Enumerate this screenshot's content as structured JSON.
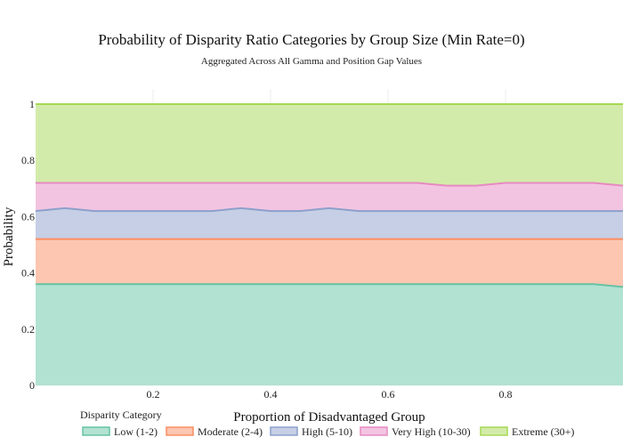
{
  "chart_data": {
    "type": "area",
    "stacked": true,
    "title": "Probability of Disparity Ratio Categories by Group Size (Min Rate=0)",
    "subtitle": "Aggregated Across All Gamma and Position Gap Values",
    "xlabel": "Proportion of Disadvantaged Group",
    "ylabel": "Probability",
    "xlim": [
      0,
      1
    ],
    "ylim": [
      0,
      1
    ],
    "x_ticks": [
      0.2,
      0.4,
      0.6,
      0.8
    ],
    "x_tick_labels": [
      "0.2",
      "0.4",
      "0.6",
      "0.8"
    ],
    "y_ticks": [
      0,
      0.2,
      0.4,
      0.6,
      0.8,
      1
    ],
    "y_tick_labels": [
      "0",
      "0.2",
      "0.4",
      "0.6",
      "0.8",
      "1"
    ],
    "grid": true,
    "legend_title": "Disparity Category",
    "legend_position": "bottom",
    "x": [
      0.0,
      0.05,
      0.1,
      0.15,
      0.2,
      0.25,
      0.3,
      0.35,
      0.4,
      0.45,
      0.5,
      0.55,
      0.6,
      0.65,
      0.7,
      0.75,
      0.8,
      0.85,
      0.9,
      0.95,
      1.0
    ],
    "series": [
      {
        "name": "Low (1-2)",
        "color": "#66c2a5",
        "fill": "#b2e2d2",
        "values": [
          0.36,
          0.36,
          0.36,
          0.36,
          0.36,
          0.36,
          0.36,
          0.36,
          0.36,
          0.36,
          0.36,
          0.36,
          0.36,
          0.36,
          0.36,
          0.36,
          0.36,
          0.36,
          0.36,
          0.36,
          0.35
        ]
      },
      {
        "name": "Moderate (2-4)",
        "color": "#fc8d62",
        "fill": "#fdc6b0",
        "values": [
          0.16,
          0.16,
          0.16,
          0.16,
          0.16,
          0.16,
          0.16,
          0.16,
          0.16,
          0.16,
          0.16,
          0.16,
          0.16,
          0.16,
          0.16,
          0.16,
          0.16,
          0.16,
          0.16,
          0.16,
          0.17
        ]
      },
      {
        "name": "High (5-10)",
        "color": "#8da0cb",
        "fill": "#c6cfe5",
        "values": [
          0.1,
          0.11,
          0.1,
          0.1,
          0.1,
          0.1,
          0.1,
          0.11,
          0.1,
          0.1,
          0.11,
          0.1,
          0.1,
          0.1,
          0.1,
          0.1,
          0.1,
          0.1,
          0.1,
          0.1,
          0.1
        ]
      },
      {
        "name": "Very High (10-30)",
        "color": "#e78ac3",
        "fill": "#f3c4e1",
        "values": [
          0.1,
          0.09,
          0.1,
          0.1,
          0.1,
          0.1,
          0.1,
          0.09,
          0.1,
          0.1,
          0.09,
          0.1,
          0.1,
          0.1,
          0.09,
          0.09,
          0.1,
          0.1,
          0.1,
          0.1,
          0.09
        ]
      },
      {
        "name": "Extreme (30+)",
        "color": "#a6d854",
        "fill": "#d3ebaa",
        "values": [
          0.28,
          0.28,
          0.28,
          0.28,
          0.28,
          0.28,
          0.28,
          0.28,
          0.28,
          0.28,
          0.28,
          0.28,
          0.28,
          0.28,
          0.29,
          0.29,
          0.28,
          0.28,
          0.28,
          0.28,
          0.29
        ]
      }
    ]
  }
}
